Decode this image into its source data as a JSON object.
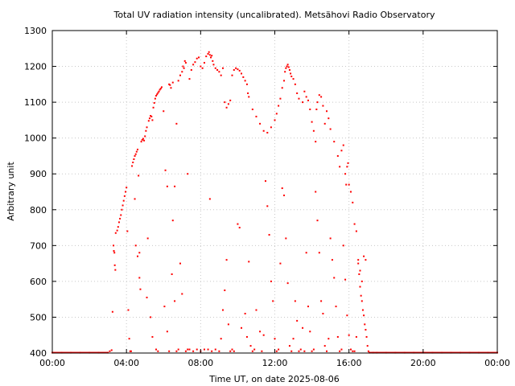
{
  "chart_data": {
    "type": "scatter",
    "title": "Total UV radiation intensity (uncalibrated). Metsähovi Radio Observatory",
    "xlabel": "Time UT, on date 2025-08-06",
    "ylabel": "Arbitrary unit",
    "xlim": [
      0,
      24
    ],
    "ylim": [
      400,
      1300
    ],
    "x_ticks": [
      {
        "value": 0,
        "label": "00:00"
      },
      {
        "value": 4,
        "label": "04:00"
      },
      {
        "value": 8,
        "label": "08:00"
      },
      {
        "value": 12,
        "label": "12:00"
      },
      {
        "value": 16,
        "label": "16:00"
      },
      {
        "value": 20,
        "label": "20:00"
      },
      {
        "value": 24,
        "label": "00:00"
      }
    ],
    "y_ticks": [
      400,
      500,
      600,
      700,
      800,
      900,
      1000,
      1100,
      1200,
      1300
    ],
    "grid": true,
    "legend": "none",
    "series": [
      {
        "color": "#ff0000",
        "x_unit": "hours UT",
        "points": [
          [
            0.0,
            401
          ],
          [
            0.5,
            401
          ],
          [
            1.0,
            401
          ],
          [
            1.5,
            401
          ],
          [
            2.0,
            401
          ],
          [
            2.5,
            401
          ],
          [
            3.0,
            401
          ],
          [
            3.1,
            405
          ],
          [
            3.2,
            408
          ],
          [
            3.25,
            515
          ],
          [
            3.3,
            700
          ],
          [
            3.32,
            685
          ],
          [
            3.35,
            680
          ],
          [
            3.37,
            645
          ],
          [
            3.4,
            632
          ],
          [
            3.42,
            735
          ],
          [
            3.5,
            742
          ],
          [
            3.55,
            752
          ],
          [
            3.6,
            765
          ],
          [
            3.65,
            775
          ],
          [
            3.7,
            785
          ],
          [
            3.75,
            800
          ],
          [
            3.8,
            812
          ],
          [
            3.85,
            825
          ],
          [
            3.9,
            838
          ],
          [
            3.95,
            850
          ],
          [
            4.0,
            862
          ],
          [
            4.05,
            740
          ],
          [
            4.1,
            520
          ],
          [
            4.15,
            440
          ],
          [
            4.2,
            405
          ],
          [
            4.25,
            405
          ],
          [
            4.3,
            922
          ],
          [
            4.35,
            932
          ],
          [
            4.4,
            941
          ],
          [
            4.45,
            950
          ],
          [
            4.5,
            955
          ],
          [
            4.55,
            962
          ],
          [
            4.6,
            968
          ],
          [
            4.65,
            895
          ],
          [
            4.7,
            680
          ],
          [
            4.75,
            578
          ],
          [
            4.8,
            990
          ],
          [
            4.85,
            995
          ],
          [
            4.9,
            998
          ],
          [
            4.95,
            993
          ],
          [
            5.0,
            1005
          ],
          [
            5.05,
            1020
          ],
          [
            5.1,
            1030
          ],
          [
            5.15,
            720
          ],
          [
            5.2,
            1048
          ],
          [
            5.25,
            1055
          ],
          [
            5.3,
            1062
          ],
          [
            5.35,
            1060
          ],
          [
            5.4,
            1050
          ],
          [
            5.45,
            1085
          ],
          [
            5.5,
            1098
          ],
          [
            5.55,
            1110
          ],
          [
            5.6,
            1118
          ],
          [
            5.65,
            1122
          ],
          [
            5.7,
            1126
          ],
          [
            5.75,
            1130
          ],
          [
            5.8,
            1135
          ],
          [
            5.85,
            1138
          ],
          [
            5.9,
            1142
          ],
          [
            6.0,
            1075
          ],
          [
            6.1,
            910
          ],
          [
            6.2,
            865
          ],
          [
            6.3,
            1150
          ],
          [
            6.35,
            1148
          ],
          [
            6.4,
            1140
          ],
          [
            6.5,
            1155
          ],
          [
            6.6,
            865
          ],
          [
            6.7,
            1040
          ],
          [
            6.8,
            1160
          ],
          [
            6.9,
            1175
          ],
          [
            7.0,
            1185
          ],
          [
            7.05,
            1200
          ],
          [
            7.1,
            1195
          ],
          [
            7.15,
            1215
          ],
          [
            7.2,
            1210
          ],
          [
            7.3,
            900
          ],
          [
            7.4,
            1165
          ],
          [
            7.5,
            1190
          ],
          [
            7.6,
            1205
          ],
          [
            7.7,
            1212
          ],
          [
            7.8,
            1222
          ],
          [
            7.9,
            1225
          ],
          [
            8.0,
            1200
          ],
          [
            8.1,
            1195
          ],
          [
            8.2,
            1210
          ],
          [
            8.3,
            1228
          ],
          [
            8.4,
            1235
          ],
          [
            8.45,
            1240
          ],
          [
            8.5,
            1232
          ],
          [
            8.55,
            1225
          ],
          [
            8.6,
            1230
          ],
          [
            8.65,
            1215
          ],
          [
            8.7,
            1205
          ],
          [
            8.8,
            1195
          ],
          [
            8.9,
            1190
          ],
          [
            9.0,
            1185
          ],
          [
            9.1,
            1175
          ],
          [
            9.2,
            1195
          ],
          [
            9.3,
            1100
          ],
          [
            9.4,
            1085
          ],
          [
            9.5,
            1095
          ],
          [
            9.6,
            1105
          ],
          [
            9.7,
            1175
          ],
          [
            9.8,
            1190
          ],
          [
            9.9,
            1195
          ],
          [
            10.0,
            1192
          ],
          [
            10.1,
            1188
          ],
          [
            10.2,
            1180
          ],
          [
            10.3,
            1170
          ],
          [
            10.4,
            1160
          ],
          [
            10.5,
            1150
          ],
          [
            10.55,
            1125
          ],
          [
            10.6,
            1115
          ],
          [
            10.8,
            1080
          ],
          [
            11.0,
            1060
          ],
          [
            11.2,
            1040
          ],
          [
            11.4,
            1020
          ],
          [
            11.6,
            1015
          ],
          [
            11.8,
            1030
          ],
          [
            12.0,
            1050
          ],
          [
            12.1,
            1068
          ],
          [
            12.2,
            1090
          ],
          [
            12.3,
            1110
          ],
          [
            12.4,
            1140
          ],
          [
            12.5,
            1160
          ],
          [
            12.55,
            1185
          ],
          [
            12.6,
            1195
          ],
          [
            12.65,
            1200
          ],
          [
            12.7,
            1205
          ],
          [
            12.75,
            1198
          ],
          [
            12.8,
            1190
          ],
          [
            12.85,
            1180
          ],
          [
            12.9,
            1172
          ],
          [
            13.0,
            1165
          ],
          [
            13.1,
            1150
          ],
          [
            13.2,
            1125
          ],
          [
            13.3,
            1110
          ],
          [
            13.5,
            1100
          ],
          [
            13.6,
            1130
          ],
          [
            13.7,
            1115
          ],
          [
            13.8,
            1105
          ],
          [
            13.9,
            1080
          ],
          [
            14.0,
            1045
          ],
          [
            14.1,
            1020
          ],
          [
            14.2,
            990
          ],
          [
            14.25,
            1080
          ],
          [
            14.3,
            1100
          ],
          [
            14.4,
            1120
          ],
          [
            14.5,
            1115
          ],
          [
            14.6,
            1090
          ],
          [
            14.7,
            1040
          ],
          [
            14.8,
            1075
          ],
          [
            14.9,
            1055
          ],
          [
            15.0,
            1025
          ],
          [
            15.2,
            990
          ],
          [
            15.4,
            950
          ],
          [
            15.5,
            920
          ],
          [
            15.6,
            965
          ],
          [
            15.7,
            980
          ],
          [
            15.8,
            900
          ],
          [
            15.85,
            870
          ],
          [
            15.9,
            920
          ],
          [
            15.95,
            930
          ],
          [
            16.0,
            870
          ],
          [
            16.1,
            850
          ],
          [
            16.2,
            820
          ],
          [
            16.3,
            760
          ],
          [
            16.4,
            740
          ],
          [
            16.5,
            660
          ],
          [
            16.55,
            620
          ],
          [
            16.6,
            585
          ],
          [
            16.65,
            560
          ],
          [
            16.7,
            545
          ],
          [
            16.75,
            520
          ],
          [
            16.8,
            505
          ],
          [
            16.85,
            480
          ],
          [
            16.9,
            465
          ],
          [
            16.95,
            445
          ],
          [
            17.0,
            420
          ],
          [
            17.05,
            405
          ],
          [
            17.1,
            401
          ],
          [
            17.3,
            401
          ],
          [
            17.5,
            401
          ],
          [
            18.0,
            401
          ],
          [
            18.5,
            401
          ],
          [
            19.0,
            401
          ],
          [
            19.5,
            401
          ],
          [
            20.0,
            401
          ],
          [
            20.5,
            401
          ],
          [
            21.0,
            401
          ],
          [
            21.5,
            401
          ],
          [
            22.0,
            401
          ],
          [
            22.5,
            401
          ],
          [
            23.0,
            401
          ],
          [
            23.5,
            401
          ],
          [
            24.0,
            401
          ],
          [
            4.45,
            830
          ],
          [
            4.5,
            700
          ],
          [
            4.6,
            670
          ],
          [
            4.7,
            610
          ],
          [
            5.1,
            555
          ],
          [
            5.3,
            500
          ],
          [
            5.4,
            445
          ],
          [
            5.6,
            410
          ],
          [
            5.7,
            405
          ],
          [
            6.05,
            530
          ],
          [
            6.2,
            460
          ],
          [
            6.3,
            405
          ],
          [
            6.45,
            620
          ],
          [
            6.5,
            770
          ],
          [
            6.6,
            545
          ],
          [
            6.7,
            405
          ],
          [
            6.8,
            410
          ],
          [
            6.9,
            650
          ],
          [
            7.0,
            565
          ],
          [
            7.2,
            405
          ],
          [
            7.3,
            410
          ],
          [
            7.4,
            410
          ],
          [
            7.6,
            405
          ],
          [
            7.8,
            410
          ],
          [
            8.0,
            405
          ],
          [
            8.2,
            410
          ],
          [
            8.4,
            410
          ],
          [
            8.5,
            830
          ],
          [
            8.6,
            405
          ],
          [
            8.8,
            410
          ],
          [
            9.0,
            405
          ],
          [
            9.1,
            440
          ],
          [
            9.2,
            520
          ],
          [
            9.3,
            575
          ],
          [
            9.4,
            660
          ],
          [
            9.5,
            480
          ],
          [
            9.6,
            405
          ],
          [
            9.7,
            410
          ],
          [
            9.8,
            405
          ],
          [
            10.0,
            760
          ],
          [
            10.1,
            750
          ],
          [
            10.2,
            470
          ],
          [
            10.4,
            510
          ],
          [
            10.5,
            445
          ],
          [
            10.6,
            655
          ],
          [
            10.7,
            420
          ],
          [
            10.8,
            405
          ],
          [
            10.9,
            410
          ],
          [
            11.0,
            520
          ],
          [
            11.2,
            460
          ],
          [
            11.3,
            405
          ],
          [
            11.4,
            450
          ],
          [
            11.5,
            880
          ],
          [
            11.6,
            810
          ],
          [
            11.7,
            730
          ],
          [
            11.8,
            600
          ],
          [
            11.9,
            545
          ],
          [
            12.0,
            440
          ],
          [
            12.1,
            405
          ],
          [
            12.2,
            410
          ],
          [
            12.3,
            650
          ],
          [
            12.4,
            860
          ],
          [
            12.5,
            840
          ],
          [
            12.6,
            720
          ],
          [
            12.7,
            595
          ],
          [
            12.8,
            420
          ],
          [
            12.9,
            405
          ],
          [
            13.0,
            440
          ],
          [
            13.1,
            545
          ],
          [
            13.2,
            490
          ],
          [
            13.3,
            405
          ],
          [
            13.4,
            410
          ],
          [
            13.5,
            470
          ],
          [
            13.6,
            405
          ],
          [
            13.7,
            680
          ],
          [
            13.8,
            530
          ],
          [
            13.9,
            460
          ],
          [
            14.0,
            405
          ],
          [
            14.1,
            410
          ],
          [
            14.2,
            850
          ],
          [
            14.3,
            770
          ],
          [
            14.4,
            680
          ],
          [
            14.5,
            545
          ],
          [
            14.6,
            510
          ],
          [
            14.7,
            420
          ],
          [
            14.8,
            405
          ],
          [
            14.9,
            440
          ],
          [
            15.0,
            720
          ],
          [
            15.1,
            660
          ],
          [
            15.2,
            610
          ],
          [
            15.3,
            530
          ],
          [
            15.4,
            445
          ],
          [
            15.5,
            405
          ],
          [
            15.6,
            410
          ],
          [
            15.7,
            700
          ],
          [
            15.8,
            605
          ],
          [
            15.9,
            505
          ],
          [
            16.0,
            450
          ],
          [
            16.1,
            410
          ],
          [
            16.2,
            405
          ],
          [
            16.3,
            405
          ],
          [
            16.4,
            445
          ],
          [
            16.5,
            650
          ],
          [
            16.6,
            630
          ],
          [
            16.7,
            600
          ],
          [
            16.8,
            670
          ],
          [
            16.9,
            660
          ]
        ]
      }
    ]
  }
}
